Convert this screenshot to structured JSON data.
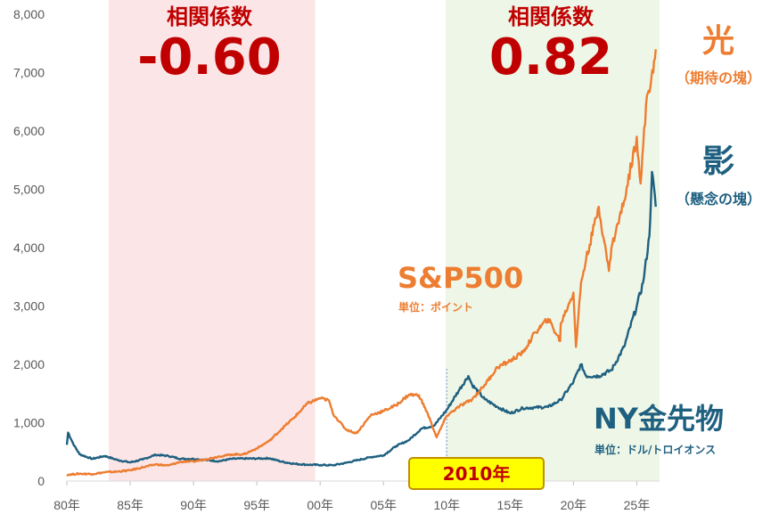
{
  "chart_data": {
    "type": "line",
    "x_range": [
      1980,
      2026.8
    ],
    "ylim": [
      0,
      8000
    ],
    "yticks": [
      0,
      1000,
      2000,
      3000,
      4000,
      5000,
      6000,
      7000,
      8000
    ],
    "ytick_labels": [
      "0",
      "1,000",
      "2,000",
      "3,000",
      "4,000",
      "5,000",
      "6,000",
      "7,000",
      "8,000"
    ],
    "xticks": [
      1980,
      1985,
      1990,
      1995,
      2000,
      2005,
      2010,
      2015,
      2020,
      2025
    ],
    "xtick_labels": [
      "80年",
      "85年",
      "90年",
      "95年",
      "00年",
      "05年",
      "10年",
      "15年",
      "20年",
      "25年"
    ],
    "grid": false,
    "regions": [
      {
        "x_from": 1983.3,
        "x_to": 1999.6,
        "color": "#fbe5e6",
        "label": "相関係数",
        "value": "-0.60"
      },
      {
        "x_from": 2009.9,
        "x_to": 2026.8,
        "color": "#eef7e7",
        "label": "相関係数",
        "value": "0.82"
      }
    ],
    "marker": {
      "x": 2010,
      "label": "2010年"
    },
    "series": [
      {
        "name": "S&P500",
        "unit_label": "単位：ポイント",
        "color": "#ed7d31",
        "points": [
          [
            1980,
            108
          ],
          [
            1981,
            125
          ],
          [
            1982,
            120
          ],
          [
            1983,
            150
          ],
          [
            1984,
            162
          ],
          [
            1985,
            185
          ],
          [
            1986,
            235
          ],
          [
            1987,
            285
          ],
          [
            1988,
            265
          ],
          [
            1989,
            330
          ],
          [
            1990,
            335
          ],
          [
            1991,
            375
          ],
          [
            1992,
            420
          ],
          [
            1993,
            455
          ],
          [
            1994,
            460
          ],
          [
            1995,
            560
          ],
          [
            1996,
            690
          ],
          [
            1997,
            900
          ],
          [
            1998,
            1100
          ],
          [
            1999,
            1330
          ],
          [
            2000,
            1420
          ],
          [
            2000.7,
            1380
          ],
          [
            2001,
            1160
          ],
          [
            2002,
            890
          ],
          [
            2002.8,
            820
          ],
          [
            2003,
            850
          ],
          [
            2004,
            1130
          ],
          [
            2005,
            1200
          ],
          [
            2006,
            1300
          ],
          [
            2007,
            1480
          ],
          [
            2007.8,
            1470
          ],
          [
            2008.5,
            1150
          ],
          [
            2009.2,
            750
          ],
          [
            2010,
            1120
          ],
          [
            2011,
            1280
          ],
          [
            2012,
            1400
          ],
          [
            2013,
            1650
          ],
          [
            2014,
            1950
          ],
          [
            2015,
            2060
          ],
          [
            2016,
            2200
          ],
          [
            2017,
            2550
          ],
          [
            2018,
            2780
          ],
          [
            2018.95,
            2400
          ],
          [
            2019,
            2700
          ],
          [
            2020,
            3230
          ],
          [
            2020.2,
            2300
          ],
          [
            2020.6,
            3400
          ],
          [
            2021,
            3800
          ],
          [
            2022,
            4700
          ],
          [
            2022.8,
            3600
          ],
          [
            2023,
            4000
          ],
          [
            2024,
            4800
          ],
          [
            2025,
            5900
          ],
          [
            2025.3,
            5100
          ],
          [
            2025.8,
            6600
          ],
          [
            2026.3,
            7000
          ],
          [
            2026.5,
            7400
          ]
        ]
      },
      {
        "name": "NY金先物",
        "unit_label": "単位：ドル/トロイオンス",
        "color": "#1f6080",
        "points": [
          [
            1980,
            620
          ],
          [
            1980.1,
            830
          ],
          [
            1980.5,
            640
          ],
          [
            1981,
            460
          ],
          [
            1982,
            380
          ],
          [
            1983,
            430
          ],
          [
            1984,
            360
          ],
          [
            1985,
            320
          ],
          [
            1986,
            370
          ],
          [
            1987,
            450
          ],
          [
            1988,
            430
          ],
          [
            1989,
            380
          ],
          [
            1990,
            380
          ],
          [
            1991,
            360
          ],
          [
            1992,
            340
          ],
          [
            1993,
            380
          ],
          [
            1994,
            385
          ],
          [
            1995,
            385
          ],
          [
            1996,
            390
          ],
          [
            1997,
            330
          ],
          [
            1998,
            295
          ],
          [
            1999,
            280
          ],
          [
            2000,
            275
          ],
          [
            2001,
            270
          ],
          [
            2002,
            310
          ],
          [
            2003,
            360
          ],
          [
            2004,
            410
          ],
          [
            2005,
            440
          ],
          [
            2006,
            600
          ],
          [
            2007,
            700
          ],
          [
            2008,
            900
          ],
          [
            2009,
            950
          ],
          [
            2010,
            1220
          ],
          [
            2011,
            1570
          ],
          [
            2011.7,
            1800
          ],
          [
            2012,
            1650
          ],
          [
            2013,
            1400
          ],
          [
            2014,
            1270
          ],
          [
            2015,
            1160
          ],
          [
            2016,
            1250
          ],
          [
            2017,
            1260
          ],
          [
            2018,
            1270
          ],
          [
            2019,
            1390
          ],
          [
            2020,
            1700
          ],
          [
            2020.6,
            2000
          ],
          [
            2021,
            1800
          ],
          [
            2022,
            1800
          ],
          [
            2023,
            1900
          ],
          [
            2024,
            2300
          ],
          [
            2025,
            3000
          ],
          [
            2025.5,
            3400
          ],
          [
            2026,
            4200
          ],
          [
            2026.2,
            5300
          ],
          [
            2026.5,
            4700
          ]
        ]
      }
    ]
  },
  "annotations": {
    "hikari": "光",
    "hikari_sub": "（期待の塊）",
    "kage": "影",
    "kage_sub": "（懸念の塊）"
  }
}
